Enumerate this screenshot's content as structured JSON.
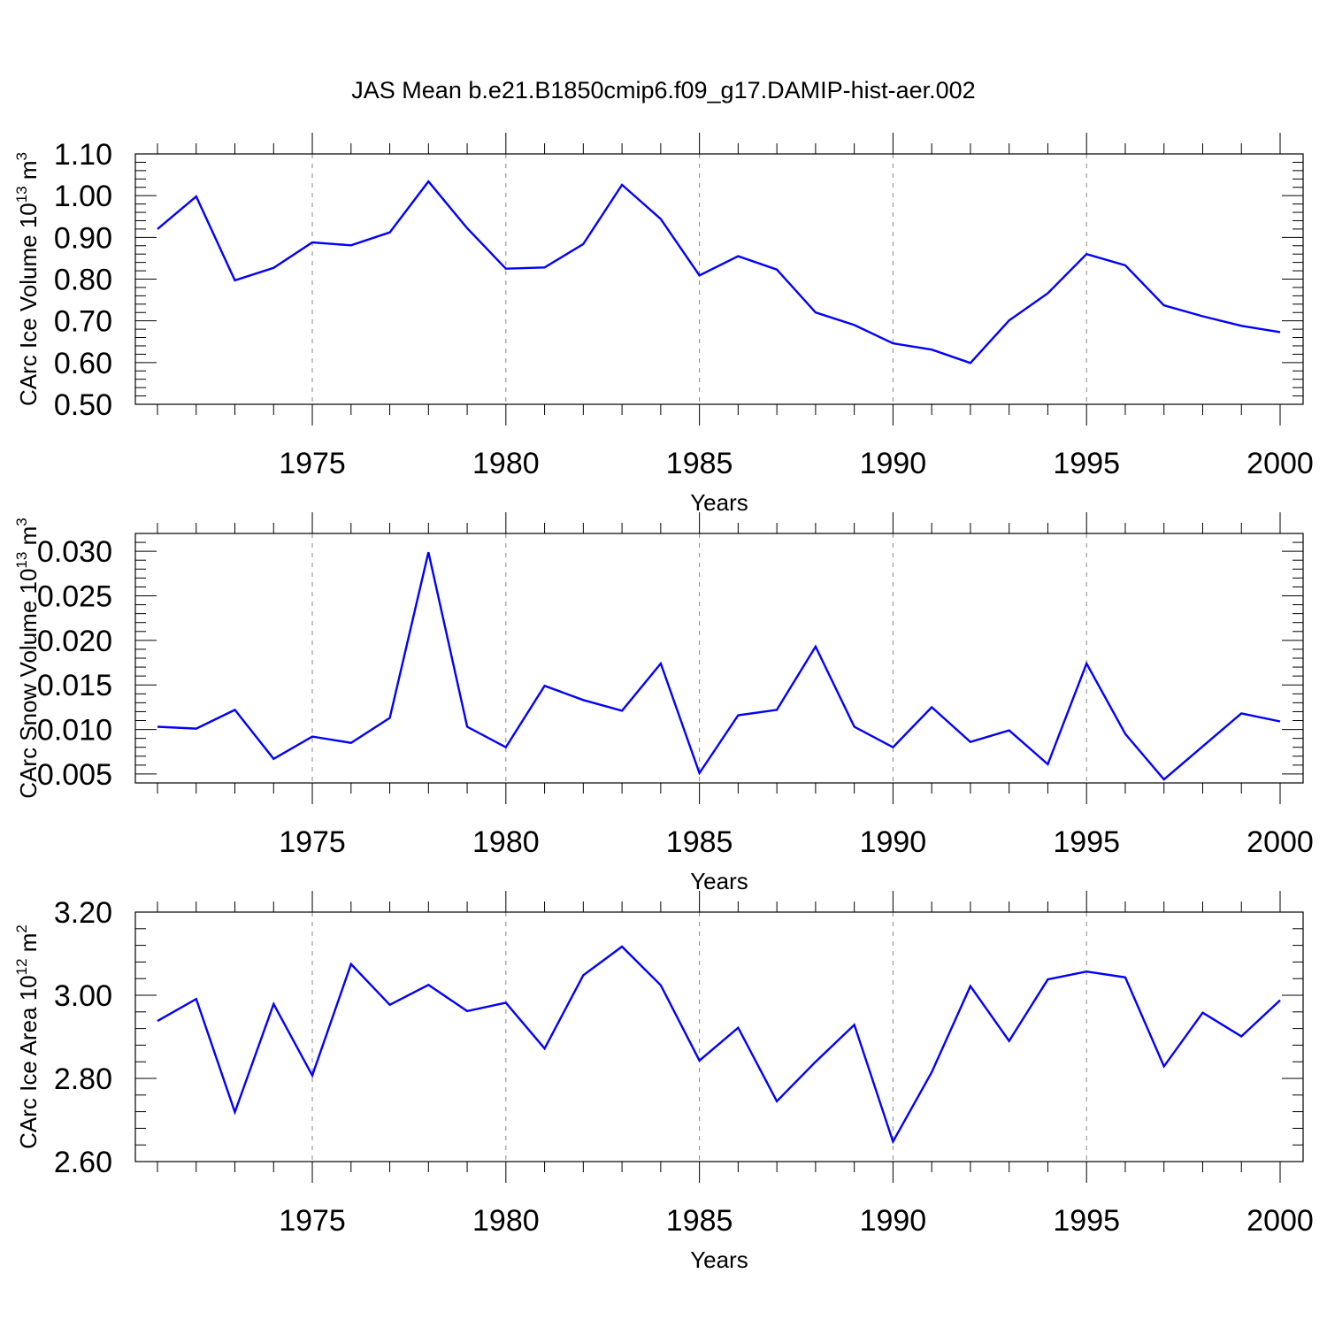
{
  "title": "JAS Mean b.e21.B1850cmip6.f09_g17.DAMIP-hist-aer.002",
  "colors": {
    "line": "#0000ff",
    "axis": "#000000",
    "grid": "#888888"
  },
  "chart_data": [
    {
      "type": "line",
      "xlabel": "Years",
      "ylabel": {
        "prefix": "CArc Ice Volume 10",
        "exp": "13",
        "unit": " m",
        "unit_exp": "3"
      },
      "xlim": [
        1971,
        2000
      ],
      "ylim": [
        0.5,
        1.1
      ],
      "xticks": [
        1975,
        1980,
        1985,
        1990,
        1995,
        2000
      ],
      "yticks": [
        "0.50",
        "0.60",
        "0.70",
        "0.80",
        "0.90",
        "1.00",
        "1.10"
      ],
      "x": [
        1971,
        1972,
        1973,
        1974,
        1975,
        1976,
        1977,
        1978,
        1979,
        1980,
        1981,
        1982,
        1983,
        1984,
        1985,
        1986,
        1987,
        1988,
        1989,
        1990,
        1991,
        1992,
        1993,
        1994,
        1995,
        1996,
        1997,
        1998,
        1999,
        2000
      ],
      "values": [
        0.92,
        0.998,
        0.797,
        0.827,
        0.888,
        0.881,
        0.912,
        1.034,
        0.922,
        0.825,
        0.828,
        0.884,
        1.026,
        0.944,
        0.809,
        0.855,
        0.823,
        0.72,
        0.69,
        0.646,
        0.631,
        0.599,
        0.701,
        0.766,
        0.86,
        0.833,
        0.737,
        0.711,
        0.688,
        0.673
      ],
      "xgrid": "dashed verticals at major x ticks"
    },
    {
      "type": "line",
      "xlabel": "Years",
      "ylabel": {
        "prefix": "CArc Snow Volume 10",
        "exp": "13",
        "unit": " m",
        "unit_exp": "3"
      },
      "xlim": [
        1971,
        2000
      ],
      "ylim": [
        0.004,
        0.032
      ],
      "xticks": [
        1975,
        1980,
        1985,
        1990,
        1995,
        2000
      ],
      "yticks": [
        "0.005",
        "0.010",
        "0.015",
        "0.020",
        "0.025",
        "0.030"
      ],
      "x": [
        1971,
        1972,
        1973,
        1974,
        1975,
        1976,
        1977,
        1978,
        1979,
        1980,
        1981,
        1982,
        1983,
        1984,
        1985,
        1986,
        1987,
        1988,
        1989,
        1990,
        1991,
        1992,
        1993,
        1994,
        1995,
        1996,
        1997,
        1998,
        1999,
        2000
      ],
      "values": [
        0.0103,
        0.0101,
        0.0122,
        0.0067,
        0.0092,
        0.0085,
        0.0113,
        0.0299,
        0.0103,
        0.008,
        0.0149,
        0.0133,
        0.0121,
        0.0174,
        0.0051,
        0.0116,
        0.0122,
        0.0193,
        0.0103,
        0.008,
        0.0125,
        0.0086,
        0.0099,
        0.0061,
        0.0174,
        0.0095,
        0.0044,
        0.0081,
        0.0118,
        0.0109
      ],
      "xgrid": "dashed verticals at major x ticks"
    },
    {
      "type": "line",
      "xlabel": "Years",
      "ylabel": {
        "prefix": "CArc Ice Area 10",
        "exp": "12",
        "unit": " m",
        "unit_exp": "2"
      },
      "xlim": [
        1971,
        2000
      ],
      "ylim": [
        2.6,
        3.2
      ],
      "xticks": [
        1975,
        1980,
        1985,
        1990,
        1995,
        2000
      ],
      "yticks": [
        "2.60",
        "2.80",
        "3.00",
        "3.20"
      ],
      "x": [
        1971,
        1972,
        1973,
        1974,
        1975,
        1976,
        1977,
        1978,
        1979,
        1980,
        1981,
        1982,
        1983,
        1984,
        1985,
        1986,
        1987,
        1988,
        1989,
        1990,
        1991,
        1992,
        1993,
        1994,
        1995,
        1996,
        1997,
        1998,
        1999,
        2000
      ],
      "values": [
        2.938,
        2.991,
        2.719,
        2.979,
        2.807,
        3.075,
        2.977,
        3.025,
        2.962,
        2.982,
        2.872,
        3.048,
        3.117,
        3.024,
        2.843,
        2.922,
        2.745,
        2.84,
        2.929,
        2.648,
        2.815,
        3.022,
        2.89,
        3.038,
        3.057,
        3.043,
        2.829,
        2.958,
        2.901,
        2.988
      ],
      "xgrid": "dashed verticals at major x ticks"
    }
  ]
}
